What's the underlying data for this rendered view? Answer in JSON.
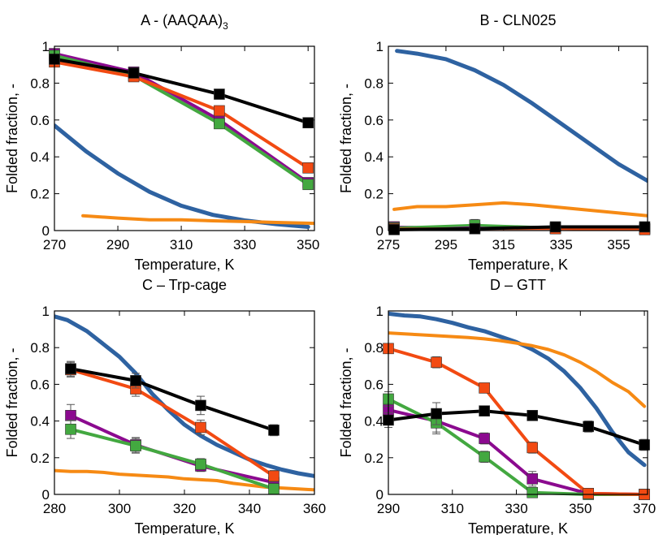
{
  "chart_data": [
    {
      "type": "line",
      "title": "A - (AAQAA)",
      "title_sub": "3",
      "xlabel": "Temperature, K",
      "ylabel": "Folded fraction, -",
      "xlim": [
        270,
        352
      ],
      "ylim": [
        0,
        1
      ],
      "xticks": [
        270,
        290,
        310,
        330,
        350
      ],
      "yticks": [
        0,
        0.2,
        0.4,
        0.6,
        0.8,
        1
      ],
      "ytick_labels": [
        "0",
        "0.2",
        "0.4",
        "0.6",
        "0.8",
        "1"
      ],
      "series": [
        {
          "color": "#2e62a1",
          "width": 5,
          "markers": false,
          "x": [
            270,
            280,
            290,
            300,
            310,
            320,
            330,
            340,
            350
          ],
          "y": [
            0.57,
            0.43,
            0.31,
            0.21,
            0.135,
            0.085,
            0.055,
            0.035,
            0.02
          ]
        },
        {
          "color": "#f68a14",
          "width": 4,
          "markers": false,
          "x": [
            279,
            290,
            300,
            310,
            320,
            330,
            340,
            352
          ],
          "y": [
            0.08,
            0.068,
            0.058,
            0.058,
            0.053,
            0.049,
            0.044,
            0.039
          ]
        },
        {
          "color": "#8b0a8f",
          "width": 4,
          "markers": true,
          "x": [
            270,
            295,
            322,
            350
          ],
          "y": [
            0.96,
            0.86,
            0.6,
            0.26
          ],
          "err": [
            0,
            0.02,
            0.025,
            0.02
          ]
        },
        {
          "color": "#43a840",
          "width": 4,
          "markers": true,
          "x": [
            270,
            295,
            322,
            350
          ],
          "y": [
            0.95,
            0.84,
            0.58,
            0.25
          ],
          "err": [
            0,
            0.02,
            0.025,
            0.02
          ]
        },
        {
          "color": "#f24a12",
          "width": 4,
          "markers": true,
          "x": [
            270,
            295,
            322,
            350
          ],
          "y": [
            0.915,
            0.835,
            0.65,
            0.34
          ],
          "err": [
            0,
            0.02,
            0.025,
            0.025
          ]
        },
        {
          "color": "#000000",
          "width": 4,
          "markers": true,
          "x": [
            270,
            295,
            322,
            350
          ],
          "y": [
            0.93,
            0.855,
            0.74,
            0.585
          ],
          "err": [
            0,
            0.02,
            0.02,
            0.02
          ]
        }
      ]
    },
    {
      "type": "line",
      "title": "B - CLN025",
      "title_sub": "",
      "xlabel": "Temperature, K",
      "ylabel": "Folded fraction, -",
      "xlim": [
        275,
        365
      ],
      "ylim": [
        0,
        1
      ],
      "xticks": [
        275,
        295,
        315,
        335,
        355
      ],
      "yticks": [
        0,
        0.2,
        0.4,
        0.6,
        0.8,
        1
      ],
      "ytick_labels": [
        "0",
        "0.2",
        "0.4",
        "0.6",
        "0.8",
        "1"
      ],
      "series": [
        {
          "color": "#2e62a1",
          "width": 5,
          "markers": false,
          "x": [
            278,
            285,
            295,
            305,
            315,
            325,
            335,
            345,
            355,
            365
          ],
          "y": [
            0.975,
            0.96,
            0.93,
            0.87,
            0.79,
            0.69,
            0.58,
            0.47,
            0.36,
            0.27
          ]
        },
        {
          "color": "#f68a14",
          "width": 4,
          "markers": false,
          "x": [
            277,
            285,
            295,
            305,
            315,
            325,
            335,
            345,
            355,
            365
          ],
          "y": [
            0.115,
            0.13,
            0.13,
            0.14,
            0.15,
            0.14,
            0.125,
            0.11,
            0.095,
            0.08
          ]
        },
        {
          "color": "#8b0a8f",
          "width": 3,
          "markers": true,
          "x": [
            277,
            305,
            333,
            364
          ],
          "y": [
            0.02,
            0.015,
            0.012,
            0.01
          ],
          "err": [
            0.02,
            0.02,
            0.02,
            0.02
          ]
        },
        {
          "color": "#43a840",
          "width": 3,
          "markers": true,
          "x": [
            277,
            305,
            333,
            364
          ],
          "y": [
            0.015,
            0.03,
            0.015,
            0.01
          ],
          "err": [
            0.02,
            0.03,
            0.02,
            0.02
          ]
        },
        {
          "color": "#f24a12",
          "width": 3,
          "markers": true,
          "x": [
            277,
            305,
            333,
            364
          ],
          "y": [
            0.01,
            0.01,
            0.01,
            0.005
          ],
          "err": [
            0.015,
            0.015,
            0.015,
            0.015
          ]
        },
        {
          "color": "#000000",
          "width": 4,
          "markers": true,
          "x": [
            277,
            305,
            333,
            364
          ],
          "y": [
            0.005,
            0.01,
            0.02,
            0.02
          ],
          "err": [
            0.015,
            0.015,
            0.02,
            0.02
          ]
        }
      ]
    },
    {
      "type": "line",
      "title": "C – Trp-cage",
      "title_sub": "",
      "xlabel": "Temperature, K",
      "ylabel": "Folded fraction, -",
      "xlim": [
        280,
        360
      ],
      "ylim": [
        0,
        1
      ],
      "xticks": [
        280,
        300,
        320,
        340,
        360
      ],
      "yticks": [
        0,
        0.2,
        0.4,
        0.6,
        0.8,
        1
      ],
      "ytick_labels": [
        "0",
        "0.2",
        "0.4",
        "0.6",
        "0.8",
        "1"
      ],
      "series": [
        {
          "color": "#2e62a1",
          "width": 5,
          "markers": false,
          "x": [
            280,
            284,
            290,
            295,
            300,
            305,
            310,
            315,
            320,
            325,
            330,
            335,
            340,
            345,
            350,
            355,
            360
          ],
          "y": [
            0.97,
            0.95,
            0.89,
            0.82,
            0.75,
            0.66,
            0.55,
            0.46,
            0.38,
            0.32,
            0.27,
            0.23,
            0.19,
            0.16,
            0.135,
            0.115,
            0.1
          ]
        },
        {
          "color": "#f68a14",
          "width": 4,
          "markers": false,
          "x": [
            280,
            285,
            290,
            295,
            300,
            305,
            310,
            315,
            320,
            325,
            330,
            335,
            340,
            345,
            350,
            355,
            360
          ],
          "y": [
            0.13,
            0.125,
            0.125,
            0.12,
            0.11,
            0.105,
            0.1,
            0.095,
            0.085,
            0.08,
            0.075,
            0.06,
            0.05,
            0.04,
            0.035,
            0.03,
            0.025
          ]
        },
        {
          "color": "#8b0a8f",
          "width": 4,
          "markers": true,
          "x": [
            285,
            305,
            325,
            347.5
          ],
          "y": [
            0.43,
            0.27,
            0.155,
            0.065
          ],
          "err": [
            0.06,
            0.04,
            0.03,
            0.03
          ]
        },
        {
          "color": "#43a840",
          "width": 4,
          "markers": true,
          "x": [
            285,
            305,
            325,
            347.5
          ],
          "y": [
            0.355,
            0.265,
            0.165,
            0.03
          ],
          "err": [
            0.05,
            0.04,
            0.03,
            0.03
          ]
        },
        {
          "color": "#f24a12",
          "width": 4,
          "markers": true,
          "x": [
            285,
            305,
            325,
            347.5
          ],
          "y": [
            0.68,
            0.575,
            0.365,
            0.1
          ],
          "err": [
            0.04,
            0.04,
            0.04,
            0.03
          ]
        },
        {
          "color": "#000000",
          "width": 4,
          "markers": true,
          "x": [
            285,
            305,
            325,
            347.5
          ],
          "y": [
            0.685,
            0.62,
            0.485,
            0.35
          ],
          "err": [
            0.04,
            0.04,
            0.05,
            0.03
          ]
        }
      ]
    },
    {
      "type": "line",
      "title": "D – GTT",
      "title_sub": "",
      "xlabel": "Temperature, K",
      "ylabel": "Folded fraction, -",
      "xlim": [
        290,
        371
      ],
      "ylim": [
        0,
        1
      ],
      "xticks": [
        290,
        310,
        330,
        350,
        370
      ],
      "yticks": [
        0,
        0.2,
        0.4,
        0.6,
        0.8,
        1
      ],
      "ytick_labels": [
        "0",
        "0.2",
        "0.4",
        "0.6",
        "0.8",
        "1"
      ],
      "series": [
        {
          "color": "#2e62a1",
          "width": 5,
          "markers": false,
          "x": [
            290,
            295,
            300,
            305,
            310,
            315,
            320,
            325,
            330,
            335,
            340,
            345,
            350,
            355,
            360,
            365,
            370
          ],
          "y": [
            0.985,
            0.975,
            0.97,
            0.955,
            0.935,
            0.91,
            0.89,
            0.86,
            0.83,
            0.79,
            0.74,
            0.67,
            0.58,
            0.47,
            0.34,
            0.23,
            0.16
          ]
        },
        {
          "color": "#f68a14",
          "width": 4,
          "markers": false,
          "x": [
            290,
            295,
            300,
            305,
            310,
            315,
            320,
            325,
            330,
            335,
            340,
            345,
            350,
            355,
            360,
            365,
            370
          ],
          "y": [
            0.88,
            0.875,
            0.87,
            0.865,
            0.86,
            0.855,
            0.848,
            0.838,
            0.825,
            0.81,
            0.79,
            0.76,
            0.72,
            0.67,
            0.61,
            0.56,
            0.48
          ]
        },
        {
          "color": "#8b0a8f",
          "width": 4,
          "markers": true,
          "x": [
            290,
            305,
            320,
            335,
            352.5,
            370
          ],
          "y": [
            0.46,
            0.4,
            0.305,
            0.085,
            0.005,
            0
          ],
          "err": [
            0.05,
            0.06,
            0.03,
            0.04,
            0.01,
            0.01
          ]
        },
        {
          "color": "#43a840",
          "width": 4,
          "markers": true,
          "x": [
            290,
            305,
            320,
            335,
            352.5,
            370
          ],
          "y": [
            0.52,
            0.39,
            0.205,
            0.01,
            0,
            0
          ],
          "err": [
            0.04,
            0.06,
            0.03,
            0.02,
            0.01,
            0.01
          ]
        },
        {
          "color": "#f24a12",
          "width": 4,
          "markers": true,
          "x": [
            290,
            305,
            320,
            335,
            352.5,
            370
          ],
          "y": [
            0.795,
            0.72,
            0.58,
            0.255,
            0.005,
            0
          ],
          "err": [
            0.02,
            0.03,
            0.02,
            0.03,
            0.01,
            0.01
          ]
        },
        {
          "color": "#000000",
          "width": 4,
          "markers": true,
          "x": [
            290,
            305,
            320,
            335,
            352.5,
            370
          ],
          "y": [
            0.405,
            0.44,
            0.455,
            0.43,
            0.37,
            0.27
          ],
          "err": [
            0.04,
            0.06,
            0.02,
            0.02,
            0.03,
            0.03
          ]
        }
      ]
    }
  ]
}
